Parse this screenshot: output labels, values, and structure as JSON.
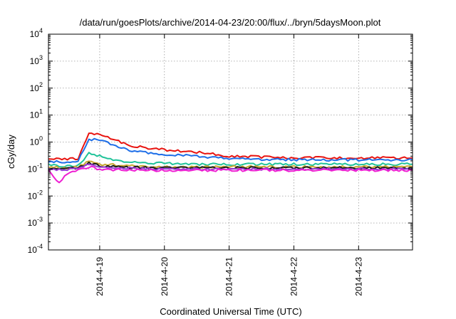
{
  "chart_data": {
    "type": "line",
    "title": "/data/run/goesPlots/archive/2014-04-23/20:00/flux/../bryn/5daysMoon.plot",
    "xlabel": "Coordinated Universal Time (UTC)",
    "ylabel": "cGy/day",
    "yscale": "log",
    "ylim": [
      0.0001,
      10000
    ],
    "xlim": [
      "2014-04-18 05:00",
      "2014-04-23 20:00"
    ],
    "y_ticks": [
      {
        "base": "10",
        "exp": "-4",
        "value": 0.0001
      },
      {
        "base": "10",
        "exp": "-3",
        "value": 0.001
      },
      {
        "base": "10",
        "exp": "-2",
        "value": 0.01
      },
      {
        "base": "10",
        "exp": "-1",
        "value": 0.1
      },
      {
        "base": "10",
        "exp": "0",
        "value": 1
      },
      {
        "base": "10",
        "exp": "1",
        "value": 10
      },
      {
        "base": "10",
        "exp": "2",
        "value": 100
      },
      {
        "base": "10",
        "exp": "3",
        "value": 1000
      },
      {
        "base": "10",
        "exp": "4",
        "value": 10000
      }
    ],
    "x_ticks": [
      {
        "label": "2014-4-19",
        "value": "2014-04-19 00:00"
      },
      {
        "label": "2014-4-20",
        "value": "2014-04-20 00:00"
      },
      {
        "label": "2014-4-21",
        "value": "2014-04-21 00:00"
      },
      {
        "label": "2014-4-22",
        "value": "2014-04-22 00:00"
      },
      {
        "label": "2014-4-23",
        "value": "2014-04-23 00:00"
      }
    ],
    "grid": true,
    "series": [
      {
        "color": "#e8130f",
        "x": [
          "2014-04-18 05:00",
          "2014-04-18 12:00",
          "2014-04-18 16:00",
          "2014-04-18 20:00",
          "2014-04-19 00:00",
          "2014-04-19 06:00",
          "2014-04-19 12:00",
          "2014-04-20 00:00",
          "2014-04-20 12:00",
          "2014-04-21 00:00",
          "2014-04-21 12:00",
          "2014-04-22 00:00",
          "2014-04-23 00:00",
          "2014-04-23 20:00"
        ],
        "y": [
          0.24,
          0.24,
          0.25,
          2.1,
          2.0,
          1.2,
          0.7,
          0.52,
          0.42,
          0.3,
          0.28,
          0.26,
          0.26,
          0.26
        ]
      },
      {
        "color": "#1f6fe8",
        "x": [
          "2014-04-18 05:00",
          "2014-04-18 12:00",
          "2014-04-18 16:00",
          "2014-04-18 20:00",
          "2014-04-19 00:00",
          "2014-04-19 06:00",
          "2014-04-19 12:00",
          "2014-04-20 00:00",
          "2014-04-20 12:00",
          "2014-04-21 00:00",
          "2014-04-21 12:00",
          "2014-04-22 00:00",
          "2014-04-23 00:00",
          "2014-04-23 20:00"
        ],
        "y": [
          0.2,
          0.18,
          0.21,
          1.25,
          1.2,
          0.7,
          0.45,
          0.35,
          0.3,
          0.24,
          0.23,
          0.22,
          0.22,
          0.22
        ]
      },
      {
        "color": "#22c39a",
        "x": [
          "2014-04-18 05:00",
          "2014-04-18 12:00",
          "2014-04-18 16:00",
          "2014-04-18 20:00",
          "2014-04-19 00:00",
          "2014-04-19 06:00",
          "2014-04-19 12:00",
          "2014-04-20 00:00",
          "2014-04-20 12:00",
          "2014-04-21 00:00",
          "2014-04-21 12:00",
          "2014-04-22 00:00",
          "2014-04-23 00:00",
          "2014-04-23 20:00"
        ],
        "y": [
          0.14,
          0.13,
          0.14,
          0.38,
          0.3,
          0.22,
          0.18,
          0.16,
          0.15,
          0.15,
          0.15,
          0.15,
          0.15,
          0.15
        ]
      },
      {
        "color": "#c9a833",
        "x": [
          "2014-04-18 05:00",
          "2014-04-18 12:00",
          "2014-04-18 16:00",
          "2014-04-18 20:00",
          "2014-04-19 00:00",
          "2014-04-19 12:00",
          "2014-04-20 00:00",
          "2014-04-21 00:00",
          "2014-04-22 00:00",
          "2014-04-23 00:00",
          "2014-04-23 20:00"
        ],
        "y": [
          0.12,
          0.11,
          0.12,
          0.2,
          0.15,
          0.13,
          0.12,
          0.12,
          0.12,
          0.12,
          0.12
        ]
      },
      {
        "color": "#1a1a1a",
        "x": [
          "2014-04-18 05:00",
          "2014-04-18 12:00",
          "2014-04-18 16:00",
          "2014-04-18 20:00",
          "2014-04-19 00:00",
          "2014-04-19 12:00",
          "2014-04-20 00:00",
          "2014-04-21 00:00",
          "2014-04-22 00:00",
          "2014-04-23 00:00",
          "2014-04-23 20:00"
        ],
        "y": [
          0.11,
          0.1,
          0.11,
          0.17,
          0.13,
          0.115,
          0.11,
          0.11,
          0.11,
          0.11,
          0.11
        ]
      },
      {
        "color": "#9b3bd6",
        "x": [
          "2014-04-18 05:00",
          "2014-04-18 12:00",
          "2014-04-18 16:00",
          "2014-04-18 20:00",
          "2014-04-19 00:00",
          "2014-04-19 12:00",
          "2014-04-20 00:00",
          "2014-04-21 00:00",
          "2014-04-22 00:00",
          "2014-04-23 00:00",
          "2014-04-23 20:00"
        ],
        "y": [
          0.1,
          0.095,
          0.1,
          0.15,
          0.12,
          0.105,
          0.1,
          0.1,
          0.1,
          0.1,
          0.1
        ]
      },
      {
        "color": "#ee1fd2",
        "x": [
          "2014-04-18 05:00",
          "2014-04-18 09:00",
          "2014-04-18 12:00",
          "2014-04-18 16:00",
          "2014-04-18 20:00",
          "2014-04-19 00:00",
          "2014-04-19 12:00",
          "2014-04-20 00:00",
          "2014-04-21 00:00",
          "2014-04-22 00:00",
          "2014-04-23 00:00",
          "2014-04-23 20:00"
        ],
        "y": [
          0.085,
          0.03,
          0.07,
          0.09,
          0.12,
          0.1,
          0.09,
          0.09,
          0.09,
          0.09,
          0.09,
          0.09
        ]
      }
    ]
  }
}
